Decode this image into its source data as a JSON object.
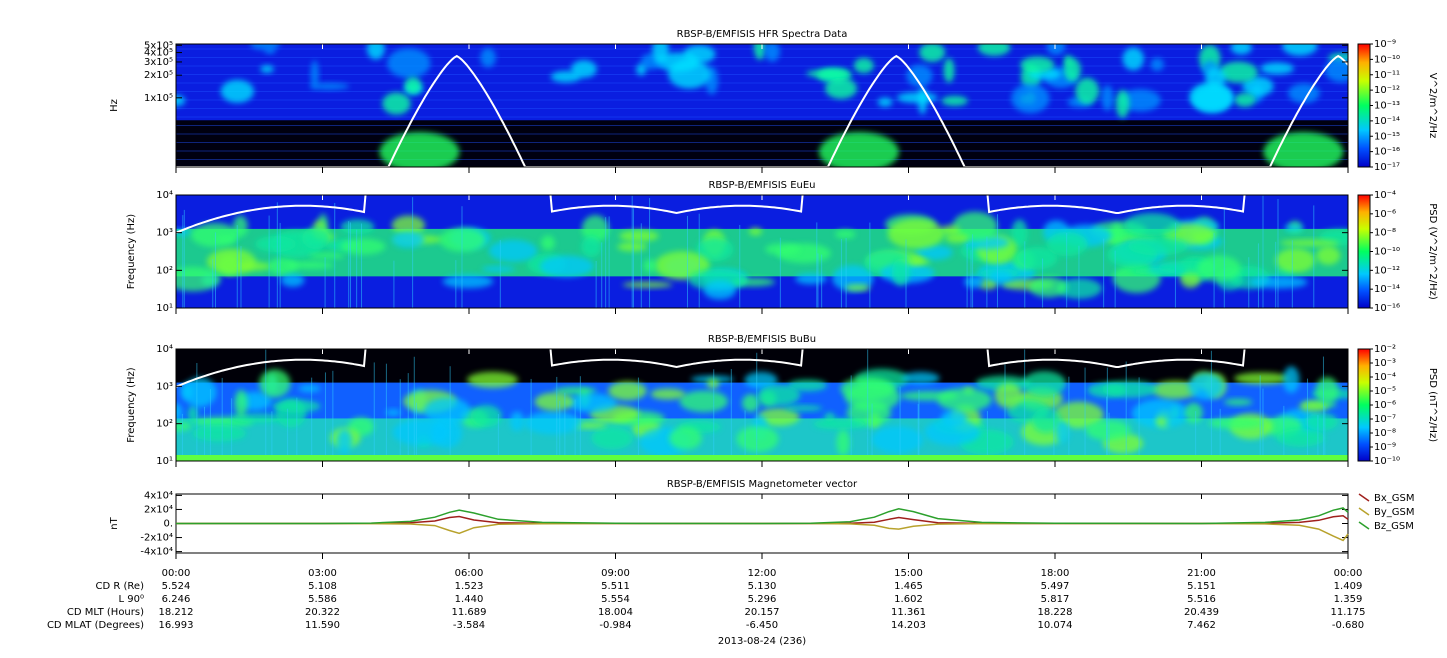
{
  "chart_data": [
    {
      "type": "spectrogram",
      "title": "RBSP-B/EMFISIS  HFR Spectra Data",
      "ylabel": "Hz",
      "ylog": true,
      "ylim": [
        12000,
        520000
      ],
      "yticks": [
        {
          "value": 500000,
          "label": "5x10⁵"
        },
        {
          "value": 400000,
          "label": "4x10⁵"
        },
        {
          "value": 300000,
          "label": "3x10⁵"
        },
        {
          "value": 200000,
          "label": "2x10⁵"
        },
        {
          "value": 100000,
          "label": "1x10⁵"
        }
      ],
      "colorbar_label": "V^2/m^2/Hz",
      "clim": [
        1e-17,
        1e-09
      ],
      "cticks": [
        {
          "value": 1e-09,
          "label": "10⁻⁹"
        },
        {
          "value": 1e-10,
          "label": "10⁻¹⁰"
        },
        {
          "value": 1e-11,
          "label": "10⁻¹¹"
        },
        {
          "value": 1e-12,
          "label": "10⁻¹²"
        },
        {
          "value": 1e-13,
          "label": "10⁻¹³"
        },
        {
          "value": 1e-14,
          "label": "10⁻¹⁴"
        },
        {
          "value": 1e-15,
          "label": "10⁻¹⁵"
        },
        {
          "value": 1e-16,
          "label": "10⁻¹⁶"
        },
        {
          "value": 1e-17,
          "label": "10⁻¹⁷"
        }
      ]
    },
    {
      "type": "spectrogram",
      "title": "RBSP-B/EMFISIS  EuEu",
      "ylabel": "Frequency (Hz)",
      "ylog": true,
      "ylim": [
        10,
        10000
      ],
      "yticks": [
        {
          "value": 10,
          "label": "10¹"
        },
        {
          "value": 100,
          "label": "10²"
        },
        {
          "value": 1000,
          "label": "10³"
        },
        {
          "value": 10000,
          "label": "10⁴"
        }
      ],
      "colorbar_label": "PSD (V^2/m^2/Hz)",
      "clim": [
        1e-16,
        0.0001
      ],
      "cticks": [
        {
          "value": 0.0001,
          "label": "10⁻⁴"
        },
        {
          "value": 1e-06,
          "label": "10⁻⁶"
        },
        {
          "value": 1e-08,
          "label": "10⁻⁸"
        },
        {
          "value": 1e-10,
          "label": "10⁻¹⁰"
        },
        {
          "value": 1e-12,
          "label": "10⁻¹²"
        },
        {
          "value": 1e-14,
          "label": "10⁻¹⁴"
        },
        {
          "value": 1e-16,
          "label": "10⁻¹⁶"
        }
      ]
    },
    {
      "type": "spectrogram",
      "title": "RBSP-B/EMFISIS  BuBu",
      "ylabel": "Frequency (Hz)",
      "ylog": true,
      "ylim": [
        10,
        10000
      ],
      "yticks": [
        {
          "value": 10,
          "label": "10¹"
        },
        {
          "value": 100,
          "label": "10²"
        },
        {
          "value": 1000,
          "label": "10³"
        },
        {
          "value": 10000,
          "label": "10⁴"
        }
      ],
      "colorbar_label": "PSD (nT^2/Hz)",
      "clim": [
        1e-10,
        0.01
      ],
      "cticks": [
        {
          "value": 0.01,
          "label": "10⁻²"
        },
        {
          "value": 0.001,
          "label": "10⁻³"
        },
        {
          "value": 0.0001,
          "label": "10⁻⁴"
        },
        {
          "value": 1e-05,
          "label": "10⁻⁵"
        },
        {
          "value": 1e-06,
          "label": "10⁻⁶"
        },
        {
          "value": 1e-07,
          "label": "10⁻⁷"
        },
        {
          "value": 1e-08,
          "label": "10⁻⁸"
        },
        {
          "value": 1e-09,
          "label": "10⁻⁹"
        },
        {
          "value": 1e-10,
          "label": "10⁻¹⁰"
        }
      ]
    },
    {
      "type": "line",
      "title": "RBSP-B/EMFISIS  Magnetometer vector",
      "ylabel": "nT",
      "ylim": [
        -42000,
        42000
      ],
      "yticks": [
        {
          "value": 40000,
          "label": "4x10⁴"
        },
        {
          "value": 20000,
          "label": "2x10⁴"
        },
        {
          "value": 0,
          "label": "0."
        },
        {
          "value": -20000,
          "label": "-2x10⁴"
        },
        {
          "value": -40000,
          "label": "-4x10⁴"
        }
      ],
      "xlim": [
        0,
        24
      ],
      "xticks": [
        {
          "value": 0,
          "label": "00:00"
        },
        {
          "value": 3,
          "label": "03:00"
        },
        {
          "value": 6,
          "label": "06:00"
        },
        {
          "value": 9,
          "label": "09:00"
        },
        {
          "value": 12,
          "label": "12:00"
        },
        {
          "value": 15,
          "label": "15:00"
        },
        {
          "value": 18,
          "label": "18:00"
        },
        {
          "value": 21,
          "label": "21:00"
        },
        {
          "value": 24,
          "label": "00:00"
        }
      ],
      "xlabel": "2013-08-24 (236)",
      "x": [
        0,
        3,
        4,
        4.8,
        5.3,
        5.6,
        5.8,
        6.1,
        6.6,
        7.5,
        9,
        12,
        13,
        13.8,
        14.3,
        14.6,
        14.8,
        15.1,
        15.6,
        16.5,
        18,
        21,
        22.3,
        23,
        23.4,
        23.7,
        23.9,
        24
      ],
      "legend": "outside-right",
      "series": [
        {
          "name": "Bx_GSM",
          "color": "#a0201c",
          "values": [
            0,
            0,
            200,
            1000,
            3500,
            8500,
            10000,
            5000,
            1200,
            300,
            0,
            0,
            0,
            400,
            1800,
            6000,
            8500,
            5500,
            1200,
            200,
            0,
            0,
            300,
            1500,
            4500,
            9500,
            11000,
            6000
          ]
        },
        {
          "name": "By_GSM",
          "color": "#b8a22c",
          "values": [
            0,
            0,
            -100,
            -700,
            -3000,
            -10000,
            -14000,
            -6000,
            -1200,
            -300,
            0,
            0,
            0,
            -500,
            -2500,
            -7000,
            -8000,
            -4000,
            -800,
            -100,
            0,
            0,
            -500,
            -2500,
            -8000,
            -18000,
            -24000,
            -15000
          ]
        },
        {
          "name": "Bz_GSM",
          "color": "#2ca02c",
          "values": [
            0,
            0,
            500,
            3000,
            9000,
            16000,
            19000,
            15000,
            6000,
            1500,
            300,
            0,
            300,
            2500,
            9000,
            17000,
            21000,
            17000,
            7000,
            1500,
            300,
            0,
            1500,
            5000,
            11000,
            19000,
            22000,
            16000
          ]
        }
      ]
    }
  ],
  "ephemeris": {
    "rows": [
      {
        "label": "CD R (Re)",
        "values": [
          "5.524",
          "5.108",
          "1.523",
          "5.511",
          "5.130",
          "1.465",
          "5.497",
          "5.151",
          "1.409"
        ]
      },
      {
        "label": "L 90⁰",
        "values": [
          "6.246",
          "5.586",
          "1.440",
          "5.554",
          "5.296",
          "1.602",
          "5.817",
          "5.516",
          "1.359"
        ]
      },
      {
        "label": "CD MLT (Hours)",
        "values": [
          "18.212",
          "20.322",
          "11.689",
          "18.004",
          "20.157",
          "11.361",
          "18.228",
          "20.439",
          "11.175"
        ]
      },
      {
        "label": "CD MLAT (Degrees)",
        "values": [
          "16.993",
          "11.590",
          "-3.584",
          "-0.984",
          "-6.450",
          "14.203",
          "10.074",
          "7.462",
          "-0.680"
        ]
      }
    ]
  }
}
